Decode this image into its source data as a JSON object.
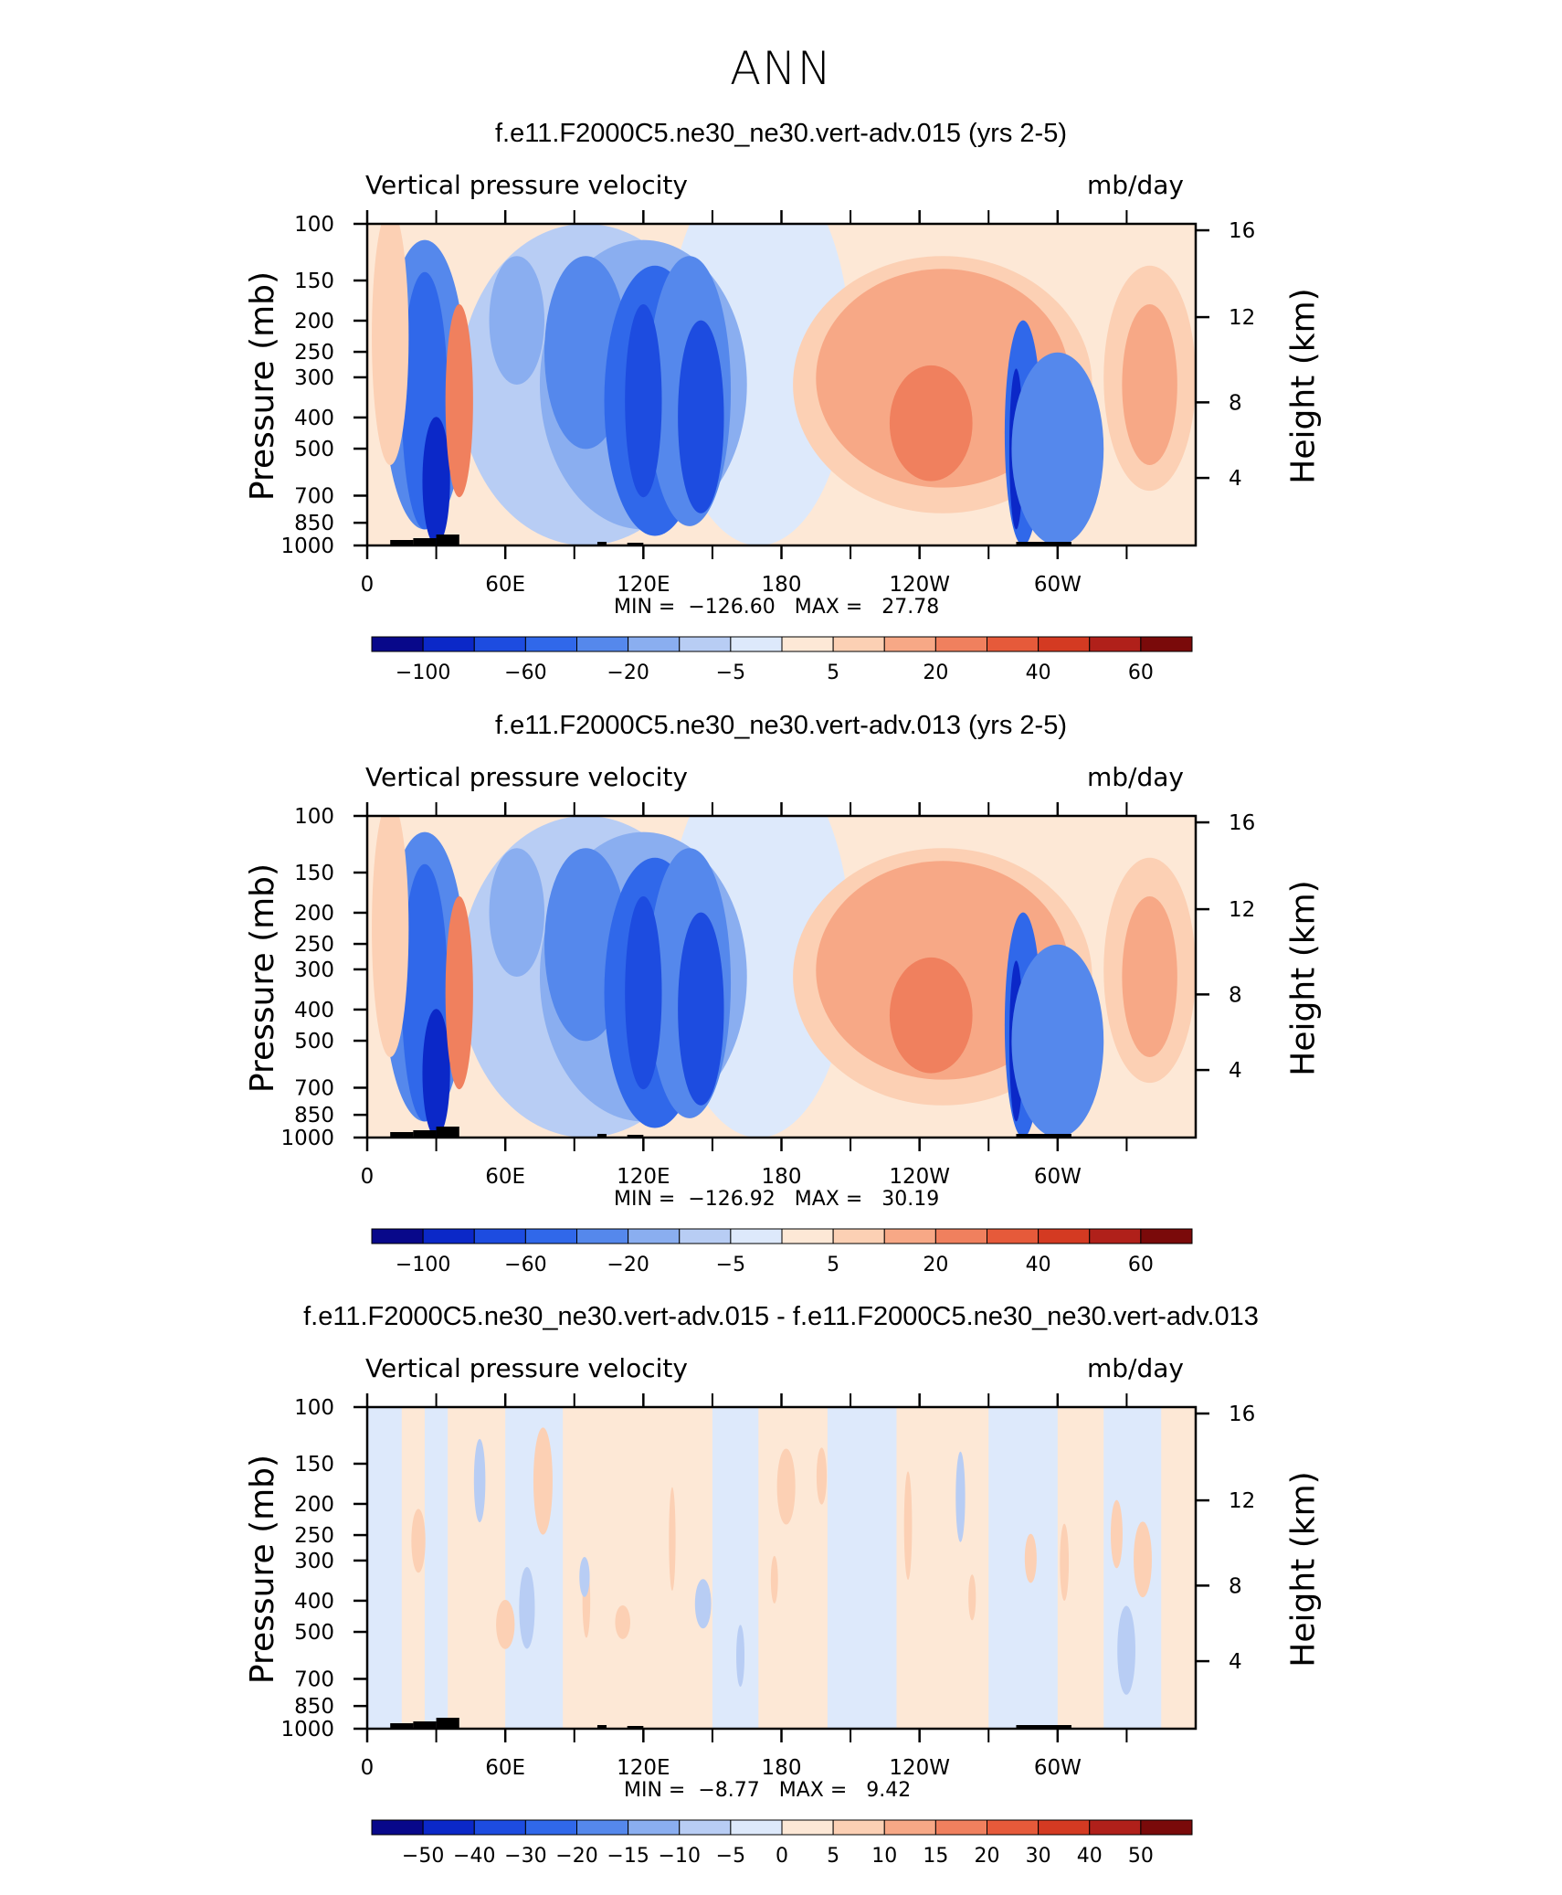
{
  "main_title": "ANN",
  "panels": [
    {
      "title": "f.e11.F2000C5.ne30_ne30.vert-adv.015 (yrs 2-5)",
      "variable": "Vertical pressure velocity",
      "units": "mb/day",
      "ylabel_left": "Pressure (mb)",
      "ylabel_right": "Height (km)",
      "min_label": "MIN =",
      "min_value": "-126.60",
      "max_label": "MAX =",
      "max_value": "27.78",
      "colorbar_labels": [
        "−100",
        "−60",
        "−20",
        "−5",
        "5",
        "20",
        "40",
        "60"
      ]
    },
    {
      "title": "f.e11.F2000C5.ne30_ne30.vert-adv.013 (yrs 2-5)",
      "variable": "Vertical pressure velocity",
      "units": "mb/day",
      "ylabel_left": "Pressure (mb)",
      "ylabel_right": "Height (km)",
      "min_label": "MIN =",
      "min_value": "-126.92",
      "max_label": "MAX =",
      "max_value": "30.19",
      "colorbar_labels": [
        "−100",
        "−60",
        "−20",
        "−5",
        "5",
        "20",
        "40",
        "60"
      ]
    },
    {
      "title": "f.e11.F2000C5.ne30_ne30.vert-adv.015 - f.e11.F2000C5.ne30_ne30.vert-adv.013",
      "variable": "Vertical pressure velocity",
      "units": "mb/day",
      "ylabel_left": "Pressure (mb)",
      "ylabel_right": "Height (km)",
      "min_label": "MIN =",
      "min_value": "-8.77",
      "max_label": "MAX =",
      "max_value": "9.42",
      "colorbar_labels": [
        "−50",
        "−40",
        "−30",
        "−20",
        "−15",
        "−10",
        "−5",
        "0",
        "5",
        "10",
        "15",
        "20",
        "30",
        "40",
        "50"
      ]
    }
  ],
  "chart_data": [
    {
      "type": "heatmap",
      "title": "f.e11.F2000C5.ne30_ne30.vert-adv.015 (yrs 2-5)",
      "x_ticks": [
        "0",
        "60E",
        "120E",
        "180",
        "120W",
        "60W"
      ],
      "y_ticks_pressure": [
        100,
        150,
        200,
        250,
        300,
        400,
        500,
        700,
        850,
        1000
      ],
      "y_ticks_height": [
        16,
        12,
        8,
        4
      ],
      "xlim": [
        0,
        360
      ],
      "ylim_pressure": [
        1000,
        100
      ],
      "min": -126.6,
      "max": 27.78,
      "contour_levels": [
        -100,
        -80,
        -60,
        -40,
        -20,
        -10,
        -5,
        0,
        5,
        10,
        20,
        30,
        40,
        50,
        60
      ]
    },
    {
      "type": "heatmap",
      "title": "f.e11.F2000C5.ne30_ne30.vert-adv.013 (yrs 2-5)",
      "x_ticks": [
        "0",
        "60E",
        "120E",
        "180",
        "120W",
        "60W"
      ],
      "y_ticks_pressure": [
        100,
        150,
        200,
        250,
        300,
        400,
        500,
        700,
        850,
        1000
      ],
      "y_ticks_height": [
        16,
        12,
        8,
        4
      ],
      "xlim": [
        0,
        360
      ],
      "ylim_pressure": [
        1000,
        100
      ],
      "min": -126.92,
      "max": 30.19,
      "contour_levels": [
        -100,
        -80,
        -60,
        -40,
        -20,
        -10,
        -5,
        0,
        5,
        10,
        20,
        30,
        40,
        50,
        60
      ]
    },
    {
      "type": "heatmap",
      "title": "f.e11.F2000C5.ne30_ne30.vert-adv.015 - f.e11.F2000C5.ne30_ne30.vert-adv.013",
      "x_ticks": [
        "0",
        "60E",
        "120E",
        "180",
        "120W",
        "60W"
      ],
      "y_ticks_pressure": [
        100,
        150,
        200,
        250,
        300,
        400,
        500,
        700,
        850,
        1000
      ],
      "y_ticks_height": [
        16,
        12,
        8,
        4
      ],
      "xlim": [
        0,
        360
      ],
      "ylim_pressure": [
        1000,
        100
      ],
      "min": -8.77,
      "max": 9.42,
      "contour_levels": [
        -50,
        -40,
        -30,
        -20,
        -15,
        -10,
        -5,
        0,
        5,
        10,
        15,
        20,
        30,
        40,
        50
      ]
    }
  ],
  "colors": {
    "full_scale": [
      "#08088a",
      "#0b28c8",
      "#1d4ce0",
      "#3068ea",
      "#5588ec",
      "#8aaef0",
      "#b8cdf4",
      "#dde9fb",
      "#fde8d6",
      "#fcd0b4",
      "#f7a886",
      "#f0805e",
      "#e65a3a",
      "#d43a22",
      "#b0201a",
      "#7a0a0a"
    ],
    "diff_scale": [
      "#08088a",
      "#0b28c8",
      "#1d4ce0",
      "#3068ea",
      "#5588ec",
      "#8aaef0",
      "#b8cdf4",
      "#dde9fb",
      "#fde8d6",
      "#fcd0b4",
      "#f7a886",
      "#f0805e",
      "#e65a3a",
      "#d43a22",
      "#b0201a",
      "#7a0a0a"
    ],
    "topography": "#000000"
  }
}
